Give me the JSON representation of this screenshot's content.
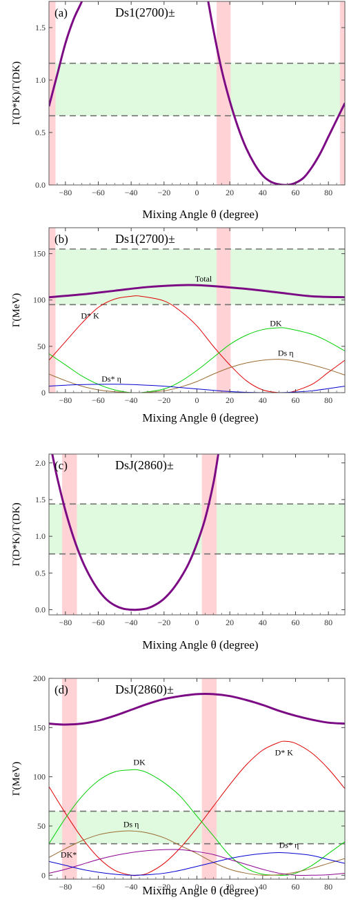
{
  "colors": {
    "band_fill": "#dffadf",
    "angle_band": "#ffd3d6",
    "total_curve": "#7b0a84",
    "dstar_k": "#e00000",
    "dk": "#00d000",
    "ds_eta": "#9b6a30",
    "ds_star_eta": "#0000d0",
    "dk_star": "#8b0090",
    "dashed": "#707070"
  },
  "chart_data": [
    {
      "panel": "(a)",
      "state": "Ds1(2700)±",
      "type": "line",
      "xlabel": "Mixing Angle θ (degree)",
      "ylabel": "Γ(D*K)/Γ(DK)",
      "xlim": [
        -90,
        90
      ],
      "ylim": [
        0,
        1.75
      ],
      "xticks": [
        -80,
        -60,
        -40,
        -20,
        0,
        20,
        40,
        60,
        80
      ],
      "yticks": [
        0.0,
        0.5,
        1.0,
        1.5
      ],
      "ytick_format": 1,
      "band": [
        0.66,
        1.16
      ],
      "angle_bands": [
        [
          -95,
          -86
        ],
        [
          12,
          20.5
        ],
        [
          87,
          95
        ]
      ],
      "series": [
        {
          "key": "ratio",
          "color_key": "total_curve",
          "width": 3,
          "x": [
            -90,
            -85,
            -80,
            -75,
            -70,
            -65,
            -60,
            0,
            5,
            10,
            15,
            20,
            25,
            30,
            35,
            40,
            45,
            50,
            55,
            60,
            65,
            70,
            75,
            80,
            85,
            90
          ],
          "y": [
            0.75,
            1.05,
            1.35,
            1.58,
            1.75,
            1.95,
            2.2,
            2.2,
            1.9,
            1.48,
            1.1,
            0.8,
            0.55,
            0.35,
            0.2,
            0.09,
            0.03,
            0.005,
            0.0,
            0.02,
            0.07,
            0.17,
            0.3,
            0.46,
            0.62,
            0.78
          ]
        }
      ]
    },
    {
      "panel": "(b)",
      "state": "Ds1(2700)±",
      "type": "line",
      "xlabel": "Mixing Angle θ (degree)",
      "ylabel": "Γ(MeV)",
      "xlim": [
        -90,
        90
      ],
      "ylim": [
        0,
        178
      ],
      "xticks": [
        -80,
        -60,
        -40,
        -20,
        0,
        20,
        40,
        60,
        80
      ],
      "yticks": [
        0,
        50,
        100,
        150
      ],
      "ytick_format": 0,
      "band": [
        95,
        155
      ],
      "angle_bands": [
        [
          -95,
          -86
        ],
        [
          12,
          20.5
        ]
      ],
      "labels": [
        {
          "text": "Total",
          "x": 4,
          "y": 120
        },
        {
          "text": "D* K",
          "x": -65,
          "y": 80
        },
        {
          "text": "DK",
          "x": 48,
          "y": 72
        },
        {
          "text": "Ds η",
          "x": 54,
          "y": 40
        },
        {
          "text": "Ds* η",
          "x": -52,
          "y": 12
        }
      ],
      "series": [
        {
          "key": "total",
          "color_key": "total_curve",
          "width": 3,
          "x": [
            -90,
            -70,
            -50,
            -30,
            -10,
            0,
            10,
            30,
            50,
            70,
            90
          ],
          "y": [
            103,
            106,
            110,
            114,
            116,
            116,
            115,
            112,
            108,
            104,
            103
          ]
        },
        {
          "key": "dstar_k",
          "color_key": "dstar_k",
          "width": 1,
          "x": [
            -90,
            -80,
            -70,
            -60,
            -50,
            -40,
            -34,
            -20,
            -10,
            0,
            10,
            20,
            30,
            40,
            50,
            56,
            70,
            80,
            90
          ],
          "y": [
            35,
            55,
            75,
            92,
            101,
            104,
            104,
            99,
            88,
            72,
            50,
            30,
            13,
            3,
            0,
            0,
            9,
            22,
            35
          ]
        },
        {
          "key": "dk",
          "color_key": "dk",
          "width": 1,
          "x": [
            -90,
            -80,
            -70,
            -60,
            -50,
            -40,
            -34,
            -20,
            -10,
            0,
            10,
            20,
            30,
            40,
            50,
            56,
            70,
            80,
            90
          ],
          "y": [
            42,
            30,
            18,
            9,
            3,
            0,
            0,
            4,
            12,
            24,
            38,
            52,
            62,
            68,
            70,
            69,
            63,
            55,
            45
          ]
        },
        {
          "key": "ds_eta",
          "color_key": "ds_eta",
          "width": 1,
          "x": [
            -90,
            -80,
            -70,
            -60,
            -50,
            -40,
            -34,
            -20,
            -10,
            0,
            10,
            20,
            30,
            40,
            50,
            60,
            70,
            80,
            90
          ],
          "y": [
            20,
            13,
            7,
            3,
            1,
            0,
            0,
            2,
            6,
            12,
            20,
            27,
            32,
            35,
            36,
            34,
            30,
            25,
            19
          ]
        },
        {
          "key": "ds_star_eta",
          "color_key": "ds_star_eta",
          "width": 1,
          "x": [
            -90,
            -75,
            -60,
            -45,
            -30,
            -20,
            -10,
            0,
            10,
            20,
            30,
            45,
            56,
            70,
            90
          ],
          "y": [
            7,
            8.5,
            9,
            9,
            8,
            7,
            5.5,
            4,
            2.5,
            1.2,
            0.4,
            0,
            0.4,
            2,
            7
          ]
        }
      ]
    },
    {
      "panel": "(c)",
      "state": "DsJ(2860)±",
      "type": "line",
      "xlabel": "Mixing Angle θ (degree)",
      "ylabel": "Γ(D*K)/Γ(DK)",
      "xlim": [
        -90,
        90
      ],
      "ylim": [
        -0.07,
        2.12
      ],
      "xticks": [
        -80,
        -60,
        -40,
        -20,
        0,
        20,
        40,
        60,
        80
      ],
      "yticks": [
        0.0,
        0.5,
        1.0,
        1.5,
        2.0
      ],
      "ytick_format": 1,
      "band": [
        0.76,
        1.44
      ],
      "angle_bands": [
        [
          -82,
          -73
        ],
        [
          3,
          12
        ]
      ],
      "series": [
        {
          "key": "ratio",
          "color_key": "total_curve",
          "width": 3,
          "x": [
            -88,
            -85,
            -80,
            -75,
            -70,
            -65,
            -60,
            -55,
            -50,
            -45,
            -40,
            -36,
            -30,
            -25,
            -20,
            -15,
            -10,
            -5,
            0,
            5,
            10,
            13
          ],
          "y": [
            2.12,
            1.8,
            1.35,
            0.98,
            0.68,
            0.45,
            0.27,
            0.14,
            0.06,
            0.015,
            0.0,
            0.0,
            0.02,
            0.07,
            0.15,
            0.27,
            0.43,
            0.63,
            0.9,
            1.24,
            1.72,
            2.12
          ]
        }
      ]
    },
    {
      "panel": "(d)",
      "state": "DsJ(2860)±",
      "type": "line",
      "xlabel": "Mixing Angle θ (degree)",
      "ylabel": "Γ(MeV)",
      "xlim": [
        -90,
        90
      ],
      "ylim": [
        -4,
        200
      ],
      "xticks": [
        -80,
        -60,
        -40,
        -20,
        0,
        20,
        40,
        60,
        80
      ],
      "yticks": [
        0,
        50,
        100,
        150,
        200
      ],
      "ytick_format": 0,
      "band": [
        32,
        65
      ],
      "angle_bands": [
        [
          -82,
          -73
        ],
        [
          3,
          12
        ]
      ],
      "labels": [
        {
          "text": "D* K",
          "x": 53,
          "y": 122
        },
        {
          "text": "DK",
          "x": -35,
          "y": 112
        },
        {
          "text": "Ds η",
          "x": -40,
          "y": 49
        },
        {
          "text": "DK*",
          "x": -78,
          "y": 18
        },
        {
          "text": "Ds* η",
          "x": 56,
          "y": 28
        }
      ],
      "series": [
        {
          "key": "total",
          "color_key": "total_curve",
          "width": 3,
          "x": [
            -90,
            -80,
            -70,
            -60,
            -50,
            -40,
            -30,
            -20,
            -10,
            0,
            10,
            20,
            30,
            40,
            50,
            60,
            70,
            80,
            90
          ],
          "y": [
            154,
            153,
            154,
            157,
            162,
            168,
            174,
            179,
            182,
            184,
            184,
            182,
            178,
            173,
            167,
            162,
            158,
            155,
            154
          ]
        },
        {
          "key": "dstar_k",
          "color_key": "dstar_k",
          "width": 1,
          "x": [
            -90,
            -80,
            -70,
            -60,
            -50,
            -40,
            -36,
            -30,
            -20,
            -10,
            0,
            10,
            20,
            30,
            40,
            50,
            54,
            60,
            70,
            80,
            90
          ],
          "y": [
            90,
            63,
            38,
            18,
            5,
            0,
            0,
            2,
            12,
            28,
            48,
            70,
            92,
            112,
            127,
            135,
            136,
            134,
            124,
            108,
            88
          ]
        },
        {
          "key": "dk",
          "color_key": "dk",
          "width": 1,
          "x": [
            -90,
            -80,
            -70,
            -60,
            -50,
            -40,
            -36,
            -30,
            -20,
            -10,
            0,
            10,
            20,
            30,
            40,
            50,
            54,
            60,
            70,
            80,
            90
          ],
          "y": [
            32,
            58,
            80,
            96,
            105,
            107,
            107,
            104,
            94,
            80,
            60,
            40,
            20,
            7,
            1,
            0,
            0,
            2,
            10,
            22,
            34
          ]
        },
        {
          "key": "ds_eta",
          "color_key": "ds_eta",
          "width": 1,
          "x": [
            -90,
            -80,
            -70,
            -60,
            -50,
            -40,
            -30,
            -20,
            -10,
            0,
            10,
            20,
            30,
            40,
            50,
            60,
            70,
            80,
            90
          ],
          "y": [
            18,
            27,
            35,
            41,
            44,
            45,
            43,
            38,
            30,
            22,
            13,
            6,
            2,
            0,
            0.5,
            3,
            7,
            12,
            17
          ]
        },
        {
          "key": "dk_star",
          "color_key": "dk_star",
          "width": 1,
          "x": [
            -90,
            -80,
            -70,
            -60,
            -50,
            -40,
            -30,
            -20,
            -10,
            0,
            10,
            20,
            30,
            40,
            50,
            60,
            70,
            80,
            90
          ],
          "y": [
            2,
            6,
            11,
            16,
            20,
            23,
            25,
            26,
            26,
            24,
            21,
            16,
            11,
            6,
            2,
            0,
            0,
            0.5,
            2
          ]
        },
        {
          "key": "ds_star_eta",
          "color_key": "ds_star_eta",
          "width": 1,
          "x": [
            -90,
            -80,
            -70,
            -60,
            -50,
            -40,
            -30,
            -20,
            -10,
            0,
            10,
            20,
            30,
            40,
            50,
            60,
            70,
            80,
            90
          ],
          "y": [
            14,
            10,
            6,
            3,
            1,
            0,
            0.5,
            2,
            5,
            9,
            13,
            17,
            20,
            22,
            23,
            22,
            20,
            16,
            12
          ]
        }
      ]
    }
  ]
}
